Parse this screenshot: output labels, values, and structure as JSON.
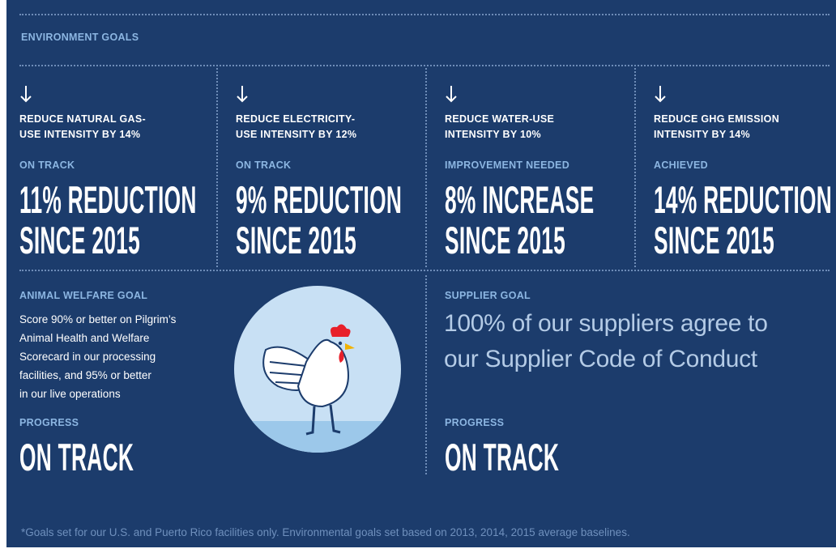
{
  "header": {
    "title": "ENVIRONMENT GOALS"
  },
  "environment_goals": [
    {
      "goal": [
        "REDUCE NATURAL GAS-",
        "USE INTENSITY BY 14%"
      ],
      "status": "ON TRACK",
      "result": [
        "11% REDUCTION",
        "SINCE 2015"
      ]
    },
    {
      "goal": [
        "REDUCE ELECTRICITY-",
        "USE INTENSITY BY 12%"
      ],
      "status": "ON TRACK",
      "result": [
        "9% REDUCTION",
        "SINCE 2015"
      ]
    },
    {
      "goal": [
        "REDUCE WATER-USE",
        "INTENSITY BY 10%"
      ],
      "status": "IMPROVEMENT NEEDED",
      "result": [
        "8% INCREASE",
        "SINCE 2015"
      ]
    },
    {
      "goal": [
        "REDUCE GHG EMISSION",
        "INTENSITY BY 14%"
      ],
      "status": "ACHIEVED",
      "result": [
        "14% REDUCTION",
        "SINCE 2015"
      ]
    }
  ],
  "animal_welfare": {
    "title": "ANIMAL WELFARE GOAL",
    "text": [
      "Score 90% or better on Pilgrim’s",
      "Animal Health and Welfare",
      "Scorecard in our processing",
      "facilities, and 95% or better",
      "in our live operations"
    ],
    "progress_label": "PROGRESS",
    "progress": "ON TRACK"
  },
  "supplier": {
    "title": "SUPPLIER GOAL",
    "text": [
      "100% of our suppliers agree to",
      "our Supplier Code of Conduct"
    ],
    "progress_label": "PROGRESS",
    "progress": "ON TRACK"
  },
  "footnote": "*Goals set for our U.S. and Puerto Rico facilities only. Environmental goals set based on 2013, 2014, 2015 average baselines."
}
